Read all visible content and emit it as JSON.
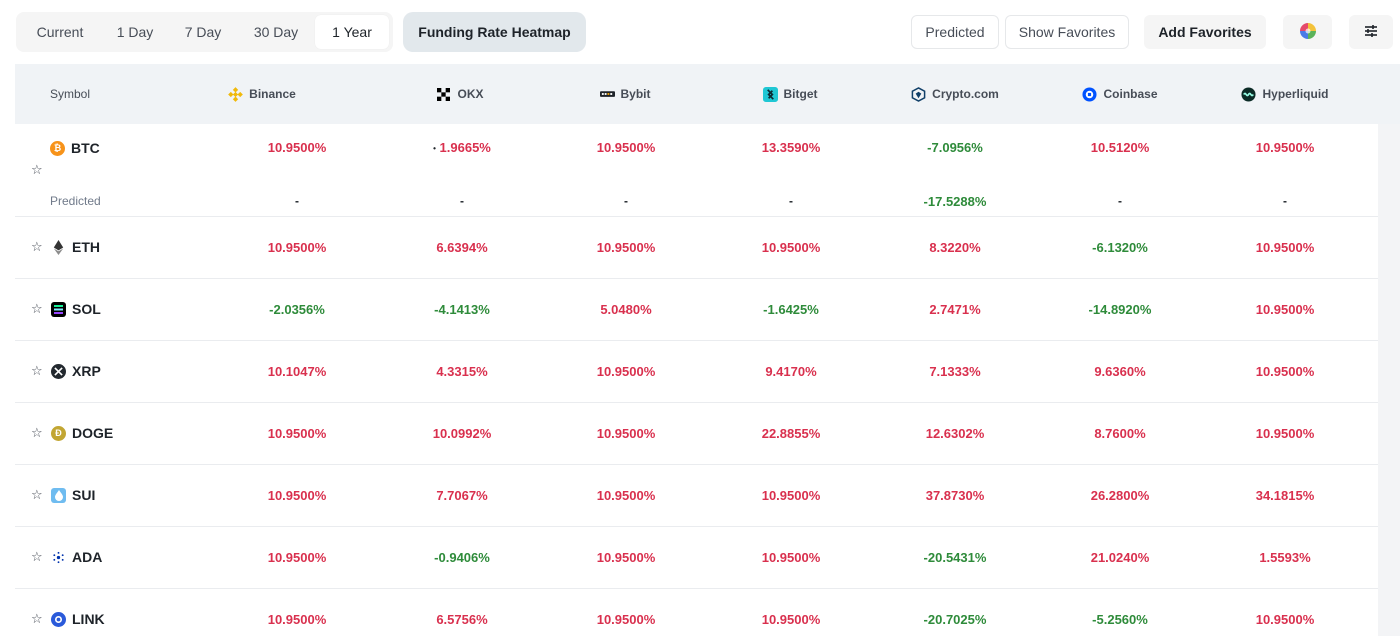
{
  "toolbar": {
    "time_tabs": [
      "Current",
      "1 Day",
      "7 Day",
      "30 Day",
      "1 Year"
    ],
    "active_tab": "1 Year",
    "heatmap_label": "Funding Rate Heatmap",
    "predicted_label": "Predicted",
    "show_favorites_label": "Show Favorites",
    "add_favorites_label": "Add Favorites"
  },
  "table": {
    "symbol_header": "Symbol",
    "exchanges": [
      "Binance",
      "OKX",
      "Bybit",
      "Bitget",
      "Crypto.com",
      "Coinbase",
      "Hyperliquid"
    ],
    "predicted_row_label": "Predicted",
    "rows": [
      {
        "symbol": "BTC",
        "values": [
          "10.9500%",
          "1.9665%",
          "10.9500%",
          "13.3590%",
          "-7.0956%",
          "10.5120%",
          "10.9500%"
        ],
        "predicted": [
          "-",
          "-",
          "-",
          "-",
          "-17.5288%",
          "-",
          "-"
        ]
      },
      {
        "symbol": "ETH",
        "values": [
          "10.9500%",
          "6.6394%",
          "10.9500%",
          "10.9500%",
          "8.3220%",
          "-6.1320%",
          "10.9500%"
        ]
      },
      {
        "symbol": "SOL",
        "values": [
          "-2.0356%",
          "-4.1413%",
          "5.0480%",
          "-1.6425%",
          "2.7471%",
          "-14.8920%",
          "10.9500%"
        ]
      },
      {
        "symbol": "XRP",
        "values": [
          "10.1047%",
          "4.3315%",
          "10.9500%",
          "9.4170%",
          "7.1333%",
          "9.6360%",
          "10.9500%"
        ]
      },
      {
        "symbol": "DOGE",
        "values": [
          "10.9500%",
          "10.0992%",
          "10.9500%",
          "22.8855%",
          "12.6302%",
          "8.7600%",
          "10.9500%"
        ]
      },
      {
        "symbol": "SUI",
        "values": [
          "10.9500%",
          "7.7067%",
          "10.9500%",
          "10.9500%",
          "37.8730%",
          "26.2800%",
          "34.1815%"
        ]
      },
      {
        "symbol": "ADA",
        "values": [
          "10.9500%",
          "-0.9406%",
          "10.9500%",
          "10.9500%",
          "-20.5431%",
          "21.0240%",
          "1.5593%"
        ]
      },
      {
        "symbol": "LINK",
        "values": [
          "10.9500%",
          "6.5756%",
          "10.9500%",
          "10.9500%",
          "-20.7025%",
          "-5.2560%",
          "10.9500%"
        ]
      }
    ]
  },
  "colors": {
    "positive": "#d9304e",
    "negative": "#2e8b3a",
    "header_bg": "#f0f3f6"
  },
  "icons": {
    "binance": "binance-logo-icon",
    "okx": "okx-logo-icon",
    "bybit": "bybit-logo-icon",
    "bitget": "bitget-logo-icon",
    "crypto_com": "crypto-com-logo-icon",
    "coinbase": "coinbase-logo-icon",
    "hyperliquid": "hyperliquid-logo-icon",
    "palette": "color-palette-icon",
    "settings": "sliders-icon",
    "star": "star-outline-icon"
  }
}
